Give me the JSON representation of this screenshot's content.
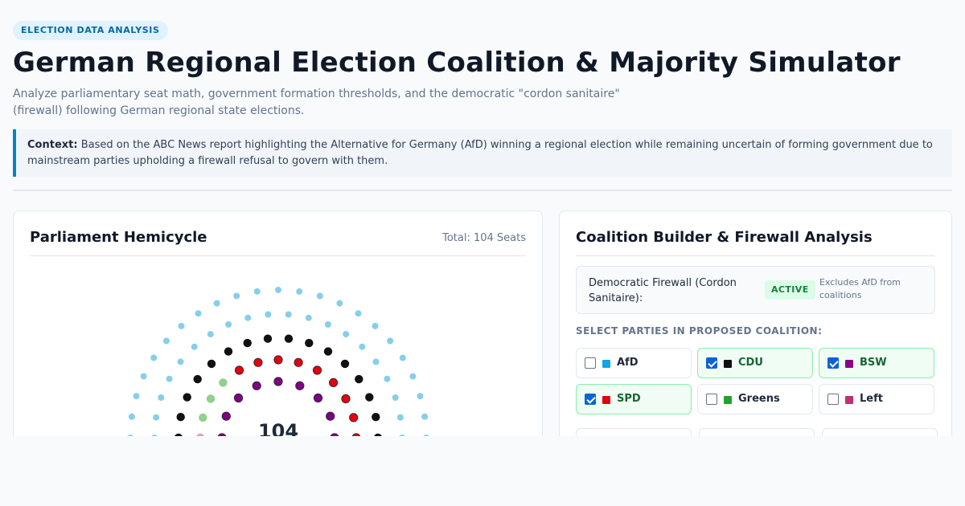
{
  "header": {
    "badge": "ELECTION DATA ANALYSIS",
    "title": "German Regional Election Coalition & Majority Simulator",
    "subtitle": "Analyze parliamentary seat math, government formation thresholds, and the democratic \"cordon sanitaire\" (firewall) following German regional state elections."
  },
  "context": {
    "label": "Context:",
    "text": "Based on the ABC News report highlighting the Alternative for Germany (AfD) winning a regional election while remaining uncertain of forming government due to mainstream parties upholding a firewall refusal to govern with them."
  },
  "hemicycle": {
    "title": "Parliament Hemicycle",
    "total_label": "Total: 104 Seats",
    "center_value": "104"
  },
  "coalition": {
    "title": "Coalition Builder & Firewall Analysis",
    "firewall_label": "Democratic Firewall (Cordon Sanitaire):",
    "firewall_status": "ACTIVE",
    "firewall_note": "Excludes AfD from coalitions",
    "select_label": "SELECT PARTIES IN PROPOSED COALITION:",
    "parties": [
      {
        "name": "AfD",
        "color": "#0ea5e9",
        "selected": false
      },
      {
        "name": "CDU",
        "color": "#111111",
        "selected": true
      },
      {
        "name": "BSW",
        "color": "#8b008b",
        "selected": true
      },
      {
        "name": "SPD",
        "color": "#e3000f",
        "selected": true
      },
      {
        "name": "Greens",
        "color": "#22a12e",
        "selected": false
      },
      {
        "name": "Left",
        "color": "#be3075",
        "selected": false
      }
    ]
  },
  "colors": {
    "AfD": "#87ceeb",
    "CDU": "#111111",
    "SPD": "#e3000f",
    "BSW": "#800080",
    "Greens": "#90d090",
    "Left": "#e0a0c0"
  }
}
